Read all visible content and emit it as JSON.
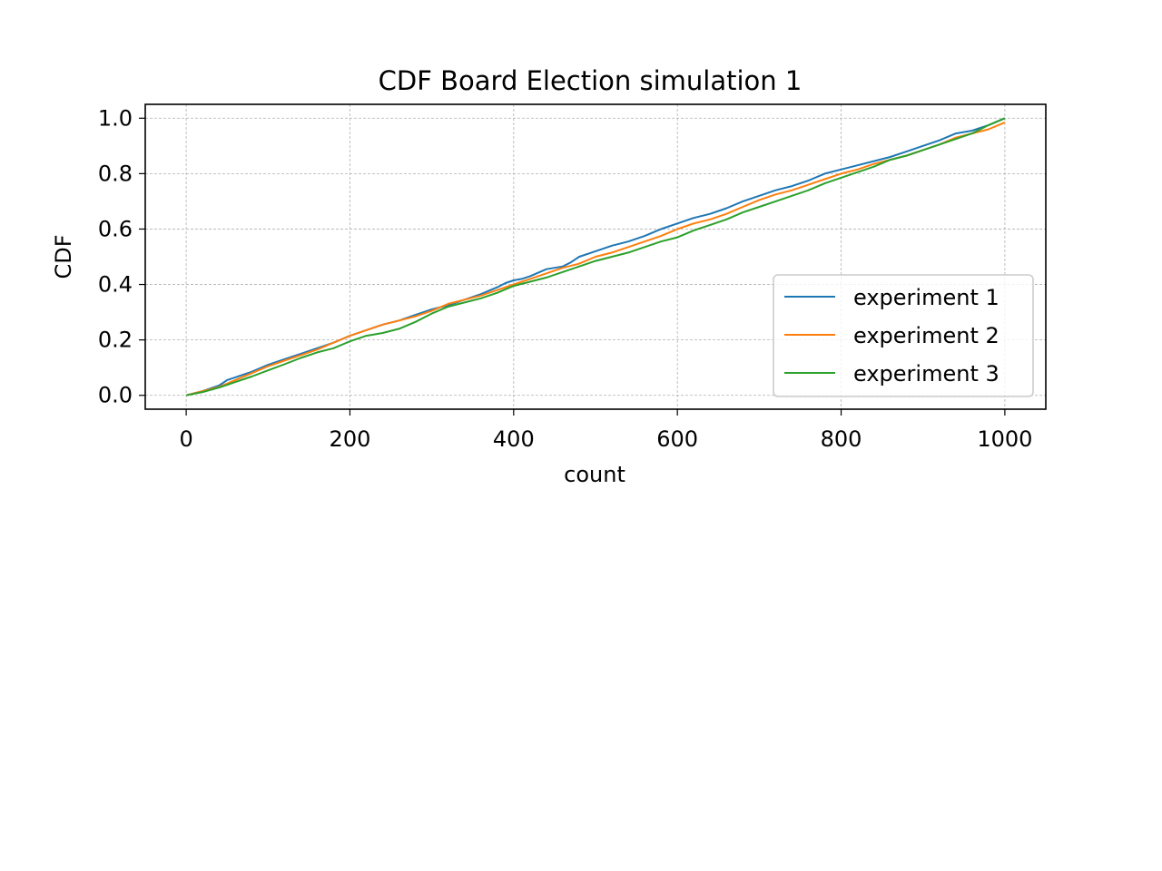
{
  "chart_data": {
    "type": "line",
    "title": "CDF Board Election simulation 1",
    "xlabel": "count",
    "ylabel": "CDF",
    "xlim": [
      -50,
      1050
    ],
    "ylim": [
      -0.05,
      1.05
    ],
    "xticks": [
      0,
      200,
      400,
      600,
      800,
      1000
    ],
    "xtick_labels": [
      "0",
      "200",
      "400",
      "600",
      "800",
      "1000"
    ],
    "yticks": [
      0.0,
      0.2,
      0.4,
      0.6,
      0.8,
      1.0
    ],
    "ytick_labels": [
      "0.0",
      "0.2",
      "0.4",
      "0.6",
      "0.8",
      "1.0"
    ],
    "grid": true,
    "legend_position": "lower right",
    "series": [
      {
        "name": "experiment 1",
        "color": "#1f77b4",
        "x": [
          0,
          20,
          40,
          50,
          60,
          70,
          80,
          100,
          120,
          140,
          160,
          180,
          200,
          220,
          240,
          260,
          280,
          300,
          320,
          340,
          360,
          380,
          390,
          400,
          410,
          420,
          440,
          460,
          470,
          480,
          500,
          520,
          540,
          560,
          580,
          600,
          620,
          640,
          660,
          680,
          700,
          720,
          740,
          760,
          780,
          800,
          820,
          840,
          860,
          880,
          900,
          920,
          940,
          960,
          980,
          1000
        ],
        "y": [
          0.0,
          0.015,
          0.035,
          0.055,
          0.065,
          0.075,
          0.085,
          0.11,
          0.13,
          0.15,
          0.17,
          0.19,
          0.215,
          0.235,
          0.255,
          0.27,
          0.29,
          0.31,
          0.325,
          0.345,
          0.365,
          0.39,
          0.405,
          0.415,
          0.42,
          0.43,
          0.455,
          0.465,
          0.48,
          0.5,
          0.52,
          0.54,
          0.555,
          0.575,
          0.6,
          0.62,
          0.64,
          0.655,
          0.675,
          0.7,
          0.72,
          0.74,
          0.755,
          0.775,
          0.8,
          0.815,
          0.83,
          0.845,
          0.86,
          0.88,
          0.9,
          0.92,
          0.945,
          0.955,
          0.975,
          1.0
        ]
      },
      {
        "name": "experiment 2",
        "color": "#ff7f0e",
        "x": [
          0,
          20,
          40,
          60,
          80,
          100,
          120,
          140,
          160,
          180,
          200,
          220,
          240,
          260,
          280,
          300,
          320,
          340,
          360,
          380,
          400,
          420,
          440,
          460,
          480,
          500,
          520,
          540,
          560,
          580,
          600,
          620,
          640,
          660,
          680,
          700,
          720,
          740,
          760,
          780,
          800,
          820,
          840,
          860,
          880,
          900,
          920,
          940,
          960,
          980,
          1000
        ],
        "y": [
          0.0,
          0.015,
          0.03,
          0.055,
          0.08,
          0.105,
          0.125,
          0.145,
          0.165,
          0.19,
          0.215,
          0.235,
          0.255,
          0.27,
          0.285,
          0.305,
          0.33,
          0.345,
          0.36,
          0.38,
          0.4,
          0.42,
          0.44,
          0.46,
          0.475,
          0.5,
          0.515,
          0.535,
          0.555,
          0.575,
          0.6,
          0.62,
          0.635,
          0.655,
          0.68,
          0.705,
          0.725,
          0.74,
          0.76,
          0.78,
          0.8,
          0.815,
          0.835,
          0.85,
          0.865,
          0.885,
          0.905,
          0.93,
          0.945,
          0.96,
          0.985
        ]
      },
      {
        "name": "experiment 3",
        "color": "#2ca02c",
        "x": [
          0,
          20,
          40,
          60,
          80,
          100,
          120,
          140,
          160,
          180,
          200,
          220,
          240,
          260,
          280,
          300,
          320,
          340,
          360,
          380,
          400,
          420,
          440,
          460,
          480,
          500,
          520,
          540,
          560,
          580,
          600,
          620,
          640,
          660,
          680,
          700,
          720,
          740,
          760,
          780,
          800,
          820,
          840,
          860,
          880,
          900,
          920,
          940,
          960,
          980,
          1000
        ],
        "y": [
          0.0,
          0.012,
          0.028,
          0.048,
          0.068,
          0.09,
          0.112,
          0.135,
          0.155,
          0.17,
          0.195,
          0.215,
          0.225,
          0.24,
          0.265,
          0.295,
          0.32,
          0.335,
          0.35,
          0.37,
          0.395,
          0.41,
          0.425,
          0.445,
          0.465,
          0.485,
          0.5,
          0.515,
          0.535,
          0.555,
          0.57,
          0.595,
          0.615,
          0.635,
          0.66,
          0.68,
          0.7,
          0.72,
          0.74,
          0.765,
          0.785,
          0.805,
          0.825,
          0.85,
          0.865,
          0.885,
          0.905,
          0.925,
          0.945,
          0.975,
          1.0
        ]
      }
    ]
  }
}
